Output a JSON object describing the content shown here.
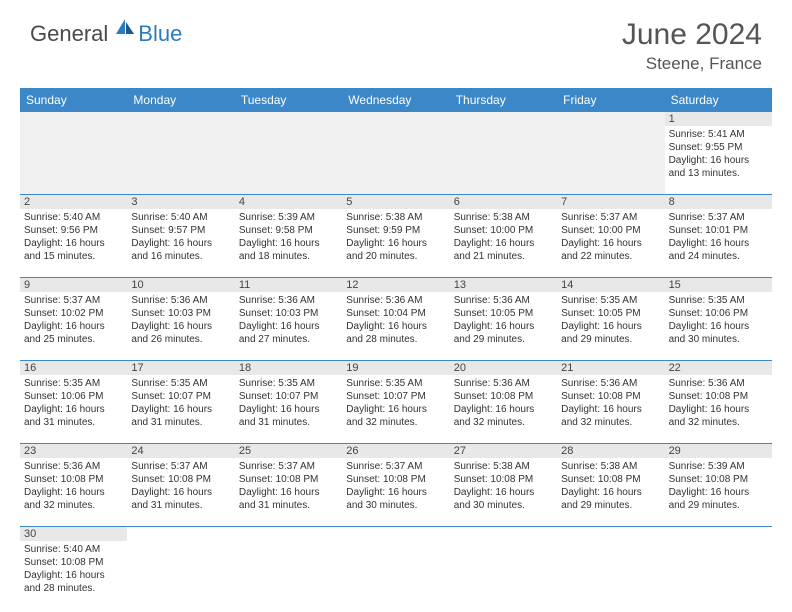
{
  "brand": {
    "part1": "General",
    "part2": "Blue"
  },
  "title": "June 2024",
  "location": "Steene, France",
  "accent_color": "#3b87c8",
  "daynum_bg": "#e8e8e8",
  "empty_bg": "#f0f0f0",
  "day_names": [
    "Sunday",
    "Monday",
    "Tuesday",
    "Wednesday",
    "Thursday",
    "Friday",
    "Saturday"
  ],
  "weeks": [
    [
      null,
      null,
      null,
      null,
      null,
      null,
      {
        "n": "1",
        "sr": "Sunrise: 5:41 AM",
        "ss": "Sunset: 9:55 PM",
        "d1": "Daylight: 16 hours",
        "d2": "and 13 minutes."
      }
    ],
    [
      {
        "n": "2",
        "sr": "Sunrise: 5:40 AM",
        "ss": "Sunset: 9:56 PM",
        "d1": "Daylight: 16 hours",
        "d2": "and 15 minutes."
      },
      {
        "n": "3",
        "sr": "Sunrise: 5:40 AM",
        "ss": "Sunset: 9:57 PM",
        "d1": "Daylight: 16 hours",
        "d2": "and 16 minutes."
      },
      {
        "n": "4",
        "sr": "Sunrise: 5:39 AM",
        "ss": "Sunset: 9:58 PM",
        "d1": "Daylight: 16 hours",
        "d2": "and 18 minutes."
      },
      {
        "n": "5",
        "sr": "Sunrise: 5:38 AM",
        "ss": "Sunset: 9:59 PM",
        "d1": "Daylight: 16 hours",
        "d2": "and 20 minutes."
      },
      {
        "n": "6",
        "sr": "Sunrise: 5:38 AM",
        "ss": "Sunset: 10:00 PM",
        "d1": "Daylight: 16 hours",
        "d2": "and 21 minutes."
      },
      {
        "n": "7",
        "sr": "Sunrise: 5:37 AM",
        "ss": "Sunset: 10:00 PM",
        "d1": "Daylight: 16 hours",
        "d2": "and 22 minutes."
      },
      {
        "n": "8",
        "sr": "Sunrise: 5:37 AM",
        "ss": "Sunset: 10:01 PM",
        "d1": "Daylight: 16 hours",
        "d2": "and 24 minutes."
      }
    ],
    [
      {
        "n": "9",
        "sr": "Sunrise: 5:37 AM",
        "ss": "Sunset: 10:02 PM",
        "d1": "Daylight: 16 hours",
        "d2": "and 25 minutes."
      },
      {
        "n": "10",
        "sr": "Sunrise: 5:36 AM",
        "ss": "Sunset: 10:03 PM",
        "d1": "Daylight: 16 hours",
        "d2": "and 26 minutes."
      },
      {
        "n": "11",
        "sr": "Sunrise: 5:36 AM",
        "ss": "Sunset: 10:03 PM",
        "d1": "Daylight: 16 hours",
        "d2": "and 27 minutes."
      },
      {
        "n": "12",
        "sr": "Sunrise: 5:36 AM",
        "ss": "Sunset: 10:04 PM",
        "d1": "Daylight: 16 hours",
        "d2": "and 28 minutes."
      },
      {
        "n": "13",
        "sr": "Sunrise: 5:36 AM",
        "ss": "Sunset: 10:05 PM",
        "d1": "Daylight: 16 hours",
        "d2": "and 29 minutes."
      },
      {
        "n": "14",
        "sr": "Sunrise: 5:35 AM",
        "ss": "Sunset: 10:05 PM",
        "d1": "Daylight: 16 hours",
        "d2": "and 29 minutes."
      },
      {
        "n": "15",
        "sr": "Sunrise: 5:35 AM",
        "ss": "Sunset: 10:06 PM",
        "d1": "Daylight: 16 hours",
        "d2": "and 30 minutes."
      }
    ],
    [
      {
        "n": "16",
        "sr": "Sunrise: 5:35 AM",
        "ss": "Sunset: 10:06 PM",
        "d1": "Daylight: 16 hours",
        "d2": "and 31 minutes."
      },
      {
        "n": "17",
        "sr": "Sunrise: 5:35 AM",
        "ss": "Sunset: 10:07 PM",
        "d1": "Daylight: 16 hours",
        "d2": "and 31 minutes."
      },
      {
        "n": "18",
        "sr": "Sunrise: 5:35 AM",
        "ss": "Sunset: 10:07 PM",
        "d1": "Daylight: 16 hours",
        "d2": "and 31 minutes."
      },
      {
        "n": "19",
        "sr": "Sunrise: 5:35 AM",
        "ss": "Sunset: 10:07 PM",
        "d1": "Daylight: 16 hours",
        "d2": "and 32 minutes."
      },
      {
        "n": "20",
        "sr": "Sunrise: 5:36 AM",
        "ss": "Sunset: 10:08 PM",
        "d1": "Daylight: 16 hours",
        "d2": "and 32 minutes."
      },
      {
        "n": "21",
        "sr": "Sunrise: 5:36 AM",
        "ss": "Sunset: 10:08 PM",
        "d1": "Daylight: 16 hours",
        "d2": "and 32 minutes."
      },
      {
        "n": "22",
        "sr": "Sunrise: 5:36 AM",
        "ss": "Sunset: 10:08 PM",
        "d1": "Daylight: 16 hours",
        "d2": "and 32 minutes."
      }
    ],
    [
      {
        "n": "23",
        "sr": "Sunrise: 5:36 AM",
        "ss": "Sunset: 10:08 PM",
        "d1": "Daylight: 16 hours",
        "d2": "and 32 minutes."
      },
      {
        "n": "24",
        "sr": "Sunrise: 5:37 AM",
        "ss": "Sunset: 10:08 PM",
        "d1": "Daylight: 16 hours",
        "d2": "and 31 minutes."
      },
      {
        "n": "25",
        "sr": "Sunrise: 5:37 AM",
        "ss": "Sunset: 10:08 PM",
        "d1": "Daylight: 16 hours",
        "d2": "and 31 minutes."
      },
      {
        "n": "26",
        "sr": "Sunrise: 5:37 AM",
        "ss": "Sunset: 10:08 PM",
        "d1": "Daylight: 16 hours",
        "d2": "and 30 minutes."
      },
      {
        "n": "27",
        "sr": "Sunrise: 5:38 AM",
        "ss": "Sunset: 10:08 PM",
        "d1": "Daylight: 16 hours",
        "d2": "and 30 minutes."
      },
      {
        "n": "28",
        "sr": "Sunrise: 5:38 AM",
        "ss": "Sunset: 10:08 PM",
        "d1": "Daylight: 16 hours",
        "d2": "and 29 minutes."
      },
      {
        "n": "29",
        "sr": "Sunrise: 5:39 AM",
        "ss": "Sunset: 10:08 PM",
        "d1": "Daylight: 16 hours",
        "d2": "and 29 minutes."
      }
    ],
    [
      {
        "n": "30",
        "sr": "Sunrise: 5:40 AM",
        "ss": "Sunset: 10:08 PM",
        "d1": "Daylight: 16 hours",
        "d2": "and 28 minutes."
      },
      null,
      null,
      null,
      null,
      null,
      null
    ]
  ]
}
